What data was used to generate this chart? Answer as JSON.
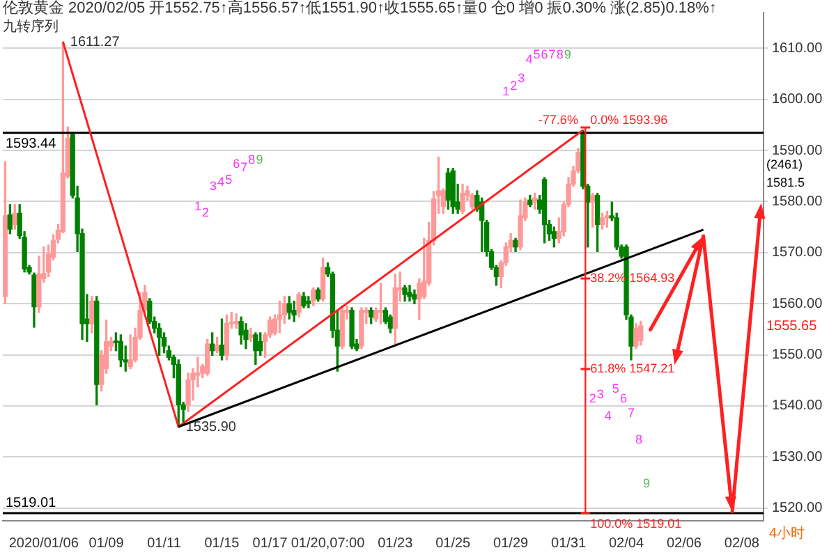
{
  "chart_data": {
    "type": "candlestick",
    "title": "伦敦黄金 2020/02/05 开1552.75↑高1556.57↑低1551.90↑收1555.65↑量0 仓0 增0 振0.30% 涨(2.85)0.18%↑",
    "subtitle": "九转序列",
    "categories": [
      null,
      null,
      null,
      null,
      null,
      null,
      null,
      null,
      "2020/01/06",
      null,
      null,
      null,
      null,
      null,
      null,
      null,
      null,
      null,
      null,
      null,
      null,
      "01/09",
      null,
      null,
      null,
      null,
      null,
      null,
      null,
      null,
      null,
      null,
      null,
      "01/11",
      null,
      null,
      null,
      null,
      null,
      null,
      null,
      null,
      null,
      null,
      null,
      "01/15",
      null,
      null,
      null,
      null,
      null,
      null,
      null,
      null,
      null,
      "01/17",
      null,
      null,
      null,
      null,
      null,
      null,
      null,
      null,
      null,
      null,
      null,
      "01/20,07:00",
      null,
      null,
      null,
      null,
      null,
      null,
      null,
      null,
      null,
      null,
      null,
      null,
      null,
      "01/23",
      null,
      null,
      null,
      null,
      null,
      null,
      null,
      null,
      null,
      null,
      null,
      "01/25",
      null,
      null,
      null,
      null,
      null,
      null,
      null,
      null,
      null,
      null,
      null,
      "01/29",
      null,
      null,
      null,
      null,
      null,
      null,
      null,
      null,
      null,
      null,
      null,
      "01/31",
      null,
      null,
      null,
      null,
      null,
      null,
      null,
      null,
      null,
      null,
      null,
      "02/04",
      null,
      null,
      null,
      null,
      null,
      null,
      null,
      null,
      null,
      null,
      null,
      "02/06",
      null,
      null,
      null,
      null,
      null,
      null,
      null,
      null,
      null,
      null,
      null,
      "02/08",
      null,
      null,
      null,
      null
    ],
    "ohlc": [
      [
        1561.4,
        1587.8,
        1560.0,
        1577.2
      ],
      [
        1577.4,
        1579.4,
        1573.7,
        1574.6
      ],
      [
        1575.5,
        1579.4,
        1574.6,
        1577.7
      ],
      [
        1577.7,
        1579.4,
        1572.8,
        1573.3
      ],
      [
        1573.0,
        1574.1,
        1566.2,
        1566.8
      ],
      [
        1567.1,
        1567.5,
        1565.8,
        1566.2
      ],
      [
        1565.6,
        1566.0,
        1555.4,
        1559.4
      ],
      [
        1559.4,
        1569.3,
        1558.3,
        1565.8
      ],
      [
        1564.9,
        1571.1,
        1564.2,
        1565.9
      ],
      [
        1566.2,
        1571.5,
        1565.3,
        1569.7
      ],
      [
        1569.1,
        1573.5,
        1568.6,
        1572.4
      ],
      [
        1572.6,
        1575.5,
        1571.9,
        1574.4
      ],
      [
        1574.1,
        1611.27,
        1573.9,
        1585.6
      ],
      [
        1585.0,
        1594.6,
        1584.6,
        1592.4
      ],
      [
        1593.1,
        1593.5,
        1580.7,
        1581.2
      ],
      [
        1580.7,
        1583.0,
        1570.2,
        1573.7
      ],
      [
        1573.7,
        1574.6,
        1553.0,
        1556.1
      ],
      [
        1557.0,
        1561.8,
        1552.6,
        1556.1
      ],
      [
        1556.1,
        1561.4,
        1554.3,
        1560.5
      ],
      [
        1560.5,
        1561.4,
        1540.2,
        1544.2
      ],
      [
        1544.2,
        1550.8,
        1542.9,
        1549.9
      ],
      [
        1547.3,
        1556.8,
        1546.4,
        1552.6
      ],
      [
        1551.7,
        1553.4,
        1550.8,
        1552.6
      ],
      [
        1552.7,
        1554.3,
        1550.8,
        1552.4
      ],
      [
        1552.6,
        1553.9,
        1547.7,
        1549.0
      ],
      [
        1549.0,
        1551.7,
        1546.8,
        1548.6
      ],
      [
        1547.7,
        1553.9,
        1547.3,
        1549.0
      ],
      [
        1549.0,
        1555.2,
        1548.6,
        1553.4
      ],
      [
        1553.4,
        1562.2,
        1553.0,
        1558.7
      ],
      [
        1558.7,
        1563.6,
        1557.8,
        1562.2
      ],
      [
        1560.5,
        1561.0,
        1556.1,
        1556.5
      ],
      [
        1556.5,
        1557.4,
        1554.3,
        1555.2
      ],
      [
        1555.2,
        1556.1,
        1549.9,
        1553.4
      ],
      [
        1553.4,
        1554.3,
        1550.4,
        1551.7
      ],
      [
        1550.8,
        1551.7,
        1549.0,
        1549.5
      ],
      [
        1549.5,
        1549.9,
        1545.5,
        1548.1
      ],
      [
        1548.1,
        1549.0,
        1535.9,
        1540.2
      ],
      [
        1540.2,
        1540.7,
        1536.5,
        1539.3
      ],
      [
        1540.2,
        1546.4,
        1538.9,
        1545.1
      ],
      [
        1545.1,
        1547.3,
        1541.1,
        1546.4
      ],
      [
        1546.0,
        1549.5,
        1543.7,
        1546.4
      ],
      [
        1546.4,
        1548.1,
        1545.5,
        1547.7
      ],
      [
        1546.4,
        1553.0,
        1546.0,
        1552.1
      ],
      [
        1552.1,
        1554.3,
        1549.9,
        1550.8
      ],
      [
        1550.8,
        1553.4,
        1550.4,
        1551.9
      ],
      [
        1551.9,
        1557.0,
        1549.0,
        1549.9
      ],
      [
        1549.9,
        1557.8,
        1549.0,
        1556.1
      ],
      [
        1556.1,
        1558.3,
        1555.2,
        1556.3
      ],
      [
        1556.1,
        1558.0,
        1555.2,
        1556.5
      ],
      [
        1556.5,
        1557.4,
        1552.1,
        1553.9
      ],
      [
        1554.8,
        1556.1,
        1551.2,
        1553.0
      ],
      [
        1553.4,
        1555.2,
        1552.6,
        1553.9
      ],
      [
        1553.9,
        1554.3,
        1548.1,
        1550.8
      ],
      [
        1552.6,
        1554.3,
        1549.9,
        1550.8
      ],
      [
        1552.6,
        1554.3,
        1549.5,
        1553.9
      ],
      [
        1553.9,
        1557.4,
        1553.4,
        1556.8
      ],
      [
        1554.3,
        1557.8,
        1553.9,
        1557.0
      ],
      [
        1557.0,
        1560.5,
        1554.3,
        1557.8
      ],
      [
        1557.8,
        1561.4,
        1556.1,
        1560.0
      ],
      [
        1560.0,
        1561.4,
        1557.0,
        1558.3
      ],
      [
        1558.7,
        1560.5,
        1556.5,
        1557.8
      ],
      [
        1558.3,
        1562.2,
        1557.4,
        1561.8
      ],
      [
        1561.4,
        1562.2,
        1559.2,
        1559.6
      ],
      [
        1560.5,
        1561.4,
        1559.2,
        1560.0
      ],
      [
        1560.5,
        1563.1,
        1559.6,
        1562.7
      ],
      [
        1562.7,
        1563.1,
        1560.5,
        1560.9
      ],
      [
        1560.9,
        1568.9,
        1560.5,
        1567.1
      ],
      [
        1567.1,
        1568.0,
        1565.3,
        1565.8
      ],
      [
        1565.8,
        1566.2,
        1553.4,
        1554.8
      ],
      [
        1554.8,
        1558.7,
        1546.8,
        1551.7
      ],
      [
        1551.7,
        1559.6,
        1551.2,
        1558.7
      ],
      [
        1558.3,
        1559.6,
        1557.0,
        1558.7
      ],
      [
        1558.7,
        1559.2,
        1551.2,
        1551.7
      ],
      [
        1552.1,
        1553.0,
        1550.8,
        1551.2
      ],
      [
        1551.7,
        1559.2,
        1551.2,
        1558.7
      ],
      [
        1558.3,
        1559.2,
        1556.1,
        1558.7
      ],
      [
        1558.7,
        1559.2,
        1556.1,
        1557.4
      ],
      [
        1557.0,
        1559.2,
        1556.5,
        1558.7
      ],
      [
        1558.3,
        1564.0,
        1556.1,
        1558.7
      ],
      [
        1558.7,
        1559.2,
        1556.1,
        1556.5
      ],
      [
        1557.4,
        1557.8,
        1554.3,
        1555.2
      ],
      [
        1555.2,
        1565.8,
        1552.1,
        1563.1
      ],
      [
        1562.7,
        1566.2,
        1560.5,
        1563.1
      ],
      [
        1563.1,
        1563.6,
        1560.5,
        1561.8
      ],
      [
        1562.2,
        1563.6,
        1560.5,
        1561.4
      ],
      [
        1561.8,
        1562.7,
        1560.0,
        1560.9
      ],
      [
        1560.9,
        1564.9,
        1556.9,
        1564.0
      ],
      [
        1561.4,
        1572.8,
        1561.0,
        1564.4
      ],
      [
        1564.0,
        1575.9,
        1563.6,
        1572.4
      ],
      [
        1572.4,
        1582.0,
        1571.5,
        1580.5
      ],
      [
        1581.2,
        1588.7,
        1577.7,
        1582.1
      ],
      [
        1579.0,
        1582.5,
        1577.7,
        1582.1
      ],
      [
        1585.6,
        1586.5,
        1578.5,
        1580.3
      ],
      [
        1586.0,
        1586.5,
        1577.7,
        1579.0
      ],
      [
        1579.9,
        1583.4,
        1577.7,
        1578.5
      ],
      [
        1578.1,
        1583.4,
        1577.7,
        1581.6
      ],
      [
        1581.2,
        1583.0,
        1580.3,
        1582.1
      ],
      [
        1579.0,
        1581.6,
        1578.5,
        1581.2
      ],
      [
        1581.2,
        1582.1,
        1578.1,
        1578.5
      ],
      [
        1579.9,
        1580.7,
        1570.2,
        1576.3
      ],
      [
        1575.9,
        1576.3,
        1569.3,
        1570.2
      ],
      [
        1570.2,
        1570.6,
        1566.7,
        1567.1
      ],
      [
        1567.1,
        1567.5,
        1563.6,
        1565.3
      ],
      [
        1565.3,
        1568.4,
        1563.1,
        1568.0
      ],
      [
        1568.0,
        1571.9,
        1567.5,
        1571.1
      ],
      [
        1571.1,
        1573.7,
        1570.2,
        1572.4
      ],
      [
        1572.4,
        1572.8,
        1570.2,
        1571.1
      ],
      [
        1571.1,
        1580.3,
        1570.6,
        1577.2
      ],
      [
        1576.8,
        1580.7,
        1576.3,
        1579.9
      ],
      [
        1580.3,
        1581.2,
        1579.0,
        1579.4
      ],
      [
        1579.9,
        1581.6,
        1578.5,
        1580.7
      ],
      [
        1580.3,
        1581.2,
        1577.7,
        1578.5
      ],
      [
        1584.3,
        1584.7,
        1571.9,
        1575.5
      ],
      [
        1575.5,
        1576.3,
        1572.4,
        1573.7
      ],
      [
        1574.1,
        1575.0,
        1571.1,
        1572.8
      ],
      [
        1572.8,
        1576.8,
        1571.9,
        1574.1
      ],
      [
        1574.1,
        1579.9,
        1573.3,
        1579.4
      ],
      [
        1579.4,
        1584.7,
        1579.0,
        1583.4
      ],
      [
        1583.4,
        1586.9,
        1583.0,
        1586.0
      ],
      [
        1586.0,
        1590.4,
        1585.6,
        1589.6
      ],
      [
        1593.5,
        1593.96,
        1582.5,
        1583.0
      ],
      [
        1583.0,
        1583.4,
        1571.1,
        1579.9
      ],
      [
        1579.9,
        1581.6,
        1575.0,
        1581.2
      ],
      [
        1581.2,
        1581.6,
        1570.2,
        1575.5
      ],
      [
        1575.5,
        1577.7,
        1574.6,
        1576.8
      ],
      [
        1576.8,
        1578.1,
        1575.0,
        1577.2
      ],
      [
        1577.2,
        1579.9,
        1576.3,
        1576.8
      ],
      [
        1576.8,
        1577.7,
        1570.6,
        1571.1
      ],
      [
        1571.1,
        1571.5,
        1568.9,
        1569.3
      ],
      [
        1571.1,
        1571.5,
        1556.9,
        1557.8
      ],
      [
        1557.4,
        1557.8,
        1549.0,
        1551.7
      ],
      [
        1551.7,
        1556.1,
        1551.2,
        1555.2
      ],
      [
        1552.75,
        1556.57,
        1551.9,
        1555.65
      ],
      null,
      null,
      null,
      null,
      null,
      null,
      null,
      null,
      null,
      null,
      null,
      null,
      null,
      null,
      null,
      null,
      null,
      null,
      null,
      null,
      null,
      null,
      null,
      null,
      null
    ],
    "colors": [
      "#ff9999",
      "#008000",
      "#ff9999",
      "#008000",
      "#008000",
      "#008000",
      "#008000",
      "#ff9999",
      "#ff9999",
      "#ff9999",
      "#ff9999",
      "#ff9999",
      "#ff9999",
      "#ff9999",
      "#008000",
      "#008000",
      "#008000",
      "#008000",
      "#ff9999",
      "#008000",
      "#ff9999",
      "#ff9999",
      "#ff9999",
      "#008000",
      "#008000",
      "#008000",
      "#ff9999",
      "#ff9999",
      "#ff9999",
      "#ff9999",
      "#008000",
      "#008000",
      "#008000",
      "#008000",
      "#008000",
      "#008000",
      "#008000",
      "#008000",
      "#ff9999",
      "#ff9999",
      "#ff9999",
      "#ff9999",
      "#ff9999",
      "#008000",
      "#ff9999",
      "#008000",
      "#ff9999",
      "#ff9999",
      "#ff9999",
      "#008000",
      "#008000",
      "#ff9999",
      "#008000",
      "#008000",
      "#ff9999",
      "#ff9999",
      "#ff9999",
      "#ff9999",
      "#ff9999",
      "#008000",
      "#008000",
      "#ff9999",
      "#008000",
      "#008000",
      "#ff9999",
      "#008000",
      "#ff9999",
      "#008000",
      "#008000",
      "#008000",
      "#ff9999",
      "#ff9999",
      "#008000",
      "#008000",
      "#ff9999",
      "#ff9999",
      "#008000",
      "#ff9999",
      "#ff9999",
      "#008000",
      "#008000",
      "#ff9999",
      "#ff9999",
      "#008000",
      "#008000",
      "#008000",
      "#ff9999",
      "#ff9999",
      "#ff9999",
      "#ff9999",
      "#ff9999",
      "#ff9999",
      "#008000",
      "#008000",
      "#008000",
      "#ff9999",
      "#ff9999",
      "#ff9999",
      "#008000",
      "#008000",
      "#008000",
      "#008000",
      "#008000",
      "#ff9999",
      "#ff9999",
      "#ff9999",
      "#008000",
      "#ff9999",
      "#ff9999",
      "#008000",
      "#ff9999",
      "#008000",
      "#008000",
      "#008000",
      "#008000",
      "#ff9999",
      "#ff9999",
      "#ff9999",
      "#ff9999",
      "#ff9999",
      "#008000",
      "#008000",
      "#ff9999",
      "#008000",
      "#ff9999",
      "#ff9999",
      "#008000",
      "#008000",
      "#008000",
      "#008000",
      "#008000",
      "#ff9999",
      "#ff9999",
      null,
      null,
      null,
      null,
      null,
      null,
      null,
      null,
      null,
      null,
      null,
      null,
      null,
      null,
      null,
      null,
      null,
      null,
      null,
      null,
      null,
      null,
      null,
      null,
      null
    ],
    "ylim": [
      1517.5,
      1617
    ],
    "yticks": [
      {
        "value": 1520,
        "label": "1520.00"
      },
      {
        "value": 1530,
        "label": "1530.00"
      },
      {
        "value": 1540,
        "label": "1540.00"
      },
      {
        "value": 1550,
        "label": "1550.00"
      },
      {
        "value": 1560,
        "label": "1560.00"
      },
      {
        "value": 1570,
        "label": "1570.00"
      },
      {
        "value": 1580,
        "label": "1580.00"
      },
      {
        "value": 1590,
        "label": "1590.00"
      },
      {
        "value": 1600,
        "label": "1600.00"
      },
      {
        "value": 1610,
        "label": "1610.00"
      }
    ],
    "grid": "y",
    "ref_lines": [
      {
        "axis": "y",
        "value": 1593.44,
        "label": "1593.44",
        "color": "#000000"
      },
      {
        "axis": "y",
        "value": 1519.01,
        "label": "1519.01",
        "color": "#000000"
      }
    ],
    "annotations": [
      "1611.27",
      "1535.90",
      {
        "text": "-77.6%",
        "y": 1593.96
      },
      {
        "text": "0.0% 1593.96",
        "y": 1593.96
      },
      "38.2% 1564.93",
      "61.8% 1547.21",
      {
        "text": "100.0% 1519.01",
        "y": 1519.01
      },
      "1555.65",
      "(2461)",
      "1581.5",
      "4小时",
      "1",
      "2",
      "3",
      "4",
      "5",
      "6",
      "7",
      "8",
      "9",
      "1",
      "2",
      "3",
      "4",
      "5",
      "6",
      "7",
      "8",
      "9",
      "2",
      "3",
      "4",
      "5",
      "6",
      "7",
      "8",
      "9"
    ]
  }
}
